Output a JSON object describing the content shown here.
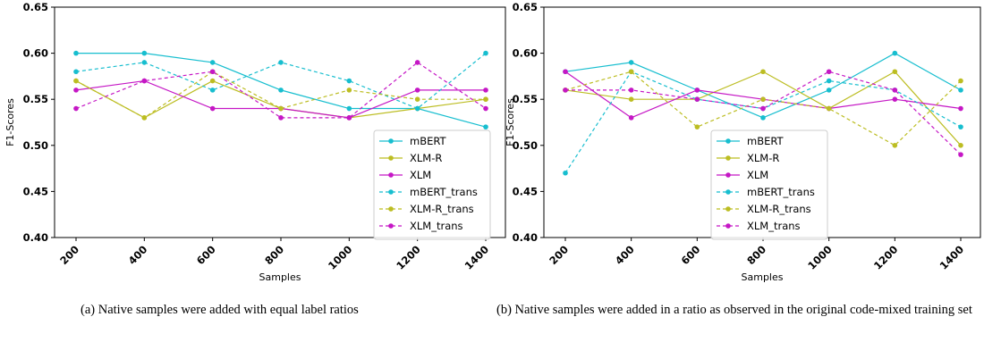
{
  "chart_data": [
    {
      "type": "line",
      "xlabel": "Samples",
      "ylabel": "F1-Scores",
      "ylim": [
        0.4,
        0.65
      ],
      "y_ticks": [
        "0.40",
        "0.45",
        "0.50",
        "0.55",
        "0.60",
        "0.65"
      ],
      "categories": [
        "200",
        "400",
        "600",
        "800",
        "1000",
        "1200",
        "1400"
      ],
      "legend_position": "lower-right",
      "grid": false,
      "series": [
        {
          "name": "mBERT",
          "color": "#17becf",
          "style": "solid",
          "values": [
            0.6,
            0.6,
            0.59,
            0.56,
            0.54,
            0.54,
            0.52
          ]
        },
        {
          "name": "XLM-R",
          "color": "#bcbd22",
          "style": "solid",
          "values": [
            0.57,
            0.53,
            0.57,
            0.54,
            0.53,
            0.54,
            0.55
          ]
        },
        {
          "name": "XLM",
          "color": "#c517c5",
          "style": "solid",
          "values": [
            0.56,
            0.57,
            0.54,
            0.54,
            0.53,
            0.56,
            0.56
          ]
        },
        {
          "name": "mBERT_trans",
          "color": "#17becf",
          "style": "dashed",
          "values": [
            0.58,
            0.59,
            0.56,
            0.59,
            0.57,
            0.54,
            0.6
          ]
        },
        {
          "name": "XLM-R_trans",
          "color": "#bcbd22",
          "style": "dashed",
          "values": [
            0.57,
            0.53,
            0.58,
            0.54,
            0.56,
            0.55,
            0.55
          ]
        },
        {
          "name": "XLM_trans",
          "color": "#c517c5",
          "style": "dashed",
          "values": [
            0.54,
            0.57,
            0.58,
            0.53,
            0.53,
            0.59,
            0.54
          ]
        }
      ],
      "caption": "(a)  Native samples were added with equal label ratios"
    },
    {
      "type": "line",
      "xlabel": "Samples",
      "ylabel": "F1-Scores",
      "ylim": [
        0.4,
        0.65
      ],
      "y_ticks": [
        "0.40",
        "0.45",
        "0.50",
        "0.55",
        "0.60",
        "0.65"
      ],
      "categories": [
        "200",
        "400",
        "600",
        "800",
        "1000",
        "1200",
        "1400"
      ],
      "legend_position": "lower-center",
      "grid": false,
      "series": [
        {
          "name": "mBERT",
          "color": "#17becf",
          "style": "solid",
          "values": [
            0.58,
            0.59,
            0.56,
            0.53,
            0.56,
            0.6,
            0.56
          ]
        },
        {
          "name": "XLM-R",
          "color": "#bcbd22",
          "style": "solid",
          "values": [
            0.56,
            0.55,
            0.55,
            0.58,
            0.54,
            0.58,
            0.5
          ]
        },
        {
          "name": "XLM",
          "color": "#c517c5",
          "style": "solid",
          "values": [
            0.58,
            0.53,
            0.56,
            0.55,
            0.54,
            0.55,
            0.54
          ]
        },
        {
          "name": "mBERT_trans",
          "color": "#17becf",
          "style": "dashed",
          "values": [
            0.47,
            0.58,
            0.55,
            0.54,
            0.57,
            0.56,
            0.52
          ]
        },
        {
          "name": "XLM-R_trans",
          "color": "#bcbd22",
          "style": "dashed",
          "values": [
            0.56,
            0.58,
            0.52,
            0.55,
            0.54,
            0.5,
            0.57
          ]
        },
        {
          "name": "XLM_trans",
          "color": "#c517c5",
          "style": "dashed",
          "values": [
            0.56,
            0.56,
            0.55,
            0.54,
            0.58,
            0.56,
            0.49
          ]
        }
      ],
      "caption": "(b)  Native samples were added in a ratio as observed in the original code-mixed training set"
    }
  ]
}
